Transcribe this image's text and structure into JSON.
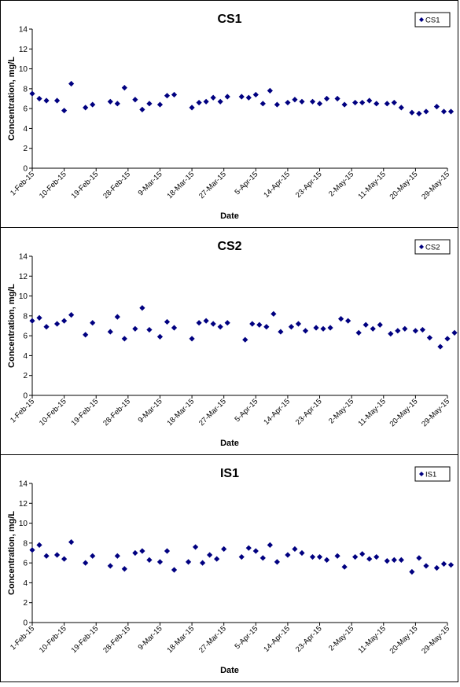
{
  "chart_data": [
    {
      "type": "scatter",
      "title": "CS1",
      "xlabel": "Date",
      "ylabel": "Concentration, mg/L",
      "ylim": [
        0,
        14
      ],
      "yticks": [
        0,
        2,
        4,
        6,
        8,
        10,
        12,
        14
      ],
      "xticks": [
        "1-Feb-15",
        "10-Feb-15",
        "19-Feb-15",
        "28-Feb-15",
        "9-Mar-15",
        "18-Mar-15",
        "27-Mar-15",
        "5-Apr-15",
        "14-Apr-15",
        "23-Apr-15",
        "2-May-15",
        "11-May-15",
        "20-May-15",
        "29-May-15"
      ],
      "legend": "top-right",
      "grid": false,
      "marker_color": "#000080",
      "series": [
        {
          "name": "CS1",
          "x": [
            "1-Feb-15",
            "3-Feb-15",
            "5-Feb-15",
            "8-Feb-15",
            "10-Feb-15",
            "12-Feb-15",
            "16-Feb-15",
            "18-Feb-15",
            "23-Feb-15",
            "25-Feb-15",
            "27-Feb-15",
            "2-Mar-15",
            "4-Mar-15",
            "6-Mar-15",
            "9-Mar-15",
            "11-Mar-15",
            "13-Mar-15",
            "18-Mar-15",
            "20-Mar-15",
            "22-Mar-15",
            "24-Mar-15",
            "26-Mar-15",
            "28-Mar-15",
            "1-Apr-15",
            "3-Apr-15",
            "5-Apr-15",
            "7-Apr-15",
            "9-Apr-15",
            "11-Apr-15",
            "14-Apr-15",
            "16-Apr-15",
            "18-Apr-15",
            "21-Apr-15",
            "23-Apr-15",
            "25-Apr-15",
            "28-Apr-15",
            "30-Apr-15",
            "3-May-15",
            "5-May-15",
            "7-May-15",
            "9-May-15",
            "12-May-15",
            "14-May-15",
            "16-May-15",
            "19-May-15",
            "21-May-15",
            "23-May-15",
            "26-May-15",
            "28-May-15",
            "30-May-15"
          ],
          "y": [
            7.5,
            7.0,
            6.8,
            6.8,
            5.8,
            8.5,
            6.1,
            6.4,
            6.7,
            6.5,
            8.1,
            6.9,
            5.9,
            6.5,
            6.4,
            7.3,
            7.4,
            6.1,
            6.6,
            6.7,
            7.1,
            6.7,
            7.2,
            7.2,
            7.1,
            7.4,
            6.5,
            7.8,
            6.4,
            6.6,
            6.9,
            6.7,
            6.7,
            6.5,
            7.0,
            7.0,
            6.4,
            6.6,
            6.6,
            6.8,
            6.5,
            6.5,
            6.6,
            6.1,
            5.6,
            5.5,
            5.7,
            6.2,
            5.7,
            5.7
          ]
        }
      ]
    },
    {
      "type": "scatter",
      "title": "CS2",
      "xlabel": "Date",
      "ylabel": "Concentration, mg/L",
      "ylim": [
        0,
        14
      ],
      "yticks": [
        0,
        2,
        4,
        6,
        8,
        10,
        12,
        14
      ],
      "xticks": [
        "1-Feb-15",
        "10-Feb-15",
        "19-Feb-15",
        "28-Feb-15",
        "9-Mar-15",
        "18-Mar-15",
        "27-Mar-15",
        "5-Apr-15",
        "14-Apr-15",
        "23-Apr-15",
        "2-May-15",
        "11-May-15",
        "20-May-15",
        "29-May-15"
      ],
      "legend": "top-right",
      "grid": false,
      "marker_color": "#000080",
      "series": [
        {
          "name": "CS2",
          "x": [
            "1-Feb-15",
            "3-Feb-15",
            "5-Feb-15",
            "8-Feb-15",
            "10-Feb-15",
            "12-Feb-15",
            "16-Feb-15",
            "18-Feb-15",
            "23-Feb-15",
            "25-Feb-15",
            "27-Feb-15",
            "2-Mar-15",
            "4-Mar-15",
            "6-Mar-15",
            "9-Mar-15",
            "11-Mar-15",
            "13-Mar-15",
            "18-Mar-15",
            "20-Mar-15",
            "22-Mar-15",
            "24-Mar-15",
            "26-Mar-15",
            "28-Mar-15",
            "2-Apr-15",
            "4-Apr-15",
            "6-Apr-15",
            "8-Apr-15",
            "10-Apr-15",
            "12-Apr-15",
            "15-Apr-15",
            "17-Apr-15",
            "19-Apr-15",
            "22-Apr-15",
            "24-Apr-15",
            "26-Apr-15",
            "29-Apr-15",
            "1-May-15",
            "4-May-15",
            "6-May-15",
            "8-May-15",
            "10-May-15",
            "13-May-15",
            "15-May-15",
            "17-May-15",
            "20-May-15",
            "22-May-15",
            "24-May-15",
            "27-May-15",
            "29-May-15",
            "31-May-15"
          ],
          "y": [
            7.5,
            7.8,
            6.9,
            7.2,
            7.5,
            8.1,
            6.1,
            7.3,
            6.4,
            7.9,
            5.7,
            6.7,
            8.8,
            6.6,
            5.9,
            7.4,
            6.8,
            5.7,
            7.3,
            7.5,
            7.2,
            6.9,
            7.3,
            5.6,
            7.2,
            7.1,
            6.9,
            8.2,
            6.4,
            6.9,
            7.2,
            6.5,
            6.8,
            6.7,
            6.8,
            7.7,
            7.5,
            6.3,
            7.1,
            6.7,
            7.1,
            6.2,
            6.5,
            6.7,
            6.5,
            6.6,
            5.8,
            4.9,
            5.7,
            6.3
          ]
        }
      ]
    },
    {
      "type": "scatter",
      "title": "IS1",
      "xlabel": "Date",
      "ylabel": "Concentration, mg/L",
      "ylim": [
        0,
        14
      ],
      "yticks": [
        0,
        2,
        4,
        6,
        8,
        10,
        12,
        14
      ],
      "xticks": [
        "1-Feb-15",
        "10-Feb-15",
        "19-Feb-15",
        "28-Feb-15",
        "9-Mar-15",
        "18-Mar-15",
        "27-Mar-15",
        "5-Apr-15",
        "14-Apr-15",
        "23-Apr-15",
        "2-May-15",
        "11-May-15",
        "20-May-15",
        "29-May-15"
      ],
      "legend": "top-right",
      "grid": false,
      "marker_color": "#000080",
      "series": [
        {
          "name": "IS1",
          "x": [
            "1-Feb-15",
            "3-Feb-15",
            "5-Feb-15",
            "8-Feb-15",
            "10-Feb-15",
            "12-Feb-15",
            "16-Feb-15",
            "18-Feb-15",
            "23-Feb-15",
            "25-Feb-15",
            "27-Feb-15",
            "2-Mar-15",
            "4-Mar-15",
            "6-Mar-15",
            "9-Mar-15",
            "11-Mar-15",
            "13-Mar-15",
            "17-Mar-15",
            "19-Mar-15",
            "21-Mar-15",
            "23-Mar-15",
            "25-Mar-15",
            "27-Mar-15",
            "1-Apr-15",
            "3-Apr-15",
            "5-Apr-15",
            "7-Apr-15",
            "9-Apr-15",
            "11-Apr-15",
            "14-Apr-15",
            "16-Apr-15",
            "18-Apr-15",
            "21-Apr-15",
            "23-Apr-15",
            "25-Apr-15",
            "28-Apr-15",
            "30-Apr-15",
            "3-May-15",
            "5-May-15",
            "7-May-15",
            "9-May-15",
            "12-May-15",
            "14-May-15",
            "16-May-15",
            "19-May-15",
            "21-May-15",
            "23-May-15",
            "26-May-15",
            "28-May-15",
            "30-May-15"
          ],
          "y": [
            7.3,
            7.8,
            6.7,
            6.8,
            6.4,
            8.1,
            6.0,
            6.7,
            5.7,
            6.7,
            5.4,
            7.0,
            7.2,
            6.3,
            6.1,
            7.2,
            5.3,
            6.1,
            7.6,
            6.0,
            6.8,
            6.4,
            7.4,
            6.6,
            7.5,
            7.2,
            6.5,
            7.8,
            6.1,
            6.8,
            7.4,
            7.0,
            6.6,
            6.6,
            6.3,
            6.7,
            5.6,
            6.6,
            6.9,
            6.4,
            6.6,
            6.2,
            6.3,
            6.3,
            5.1,
            6.5,
            5.7,
            5.5,
            5.9,
            5.8
          ]
        }
      ]
    }
  ]
}
